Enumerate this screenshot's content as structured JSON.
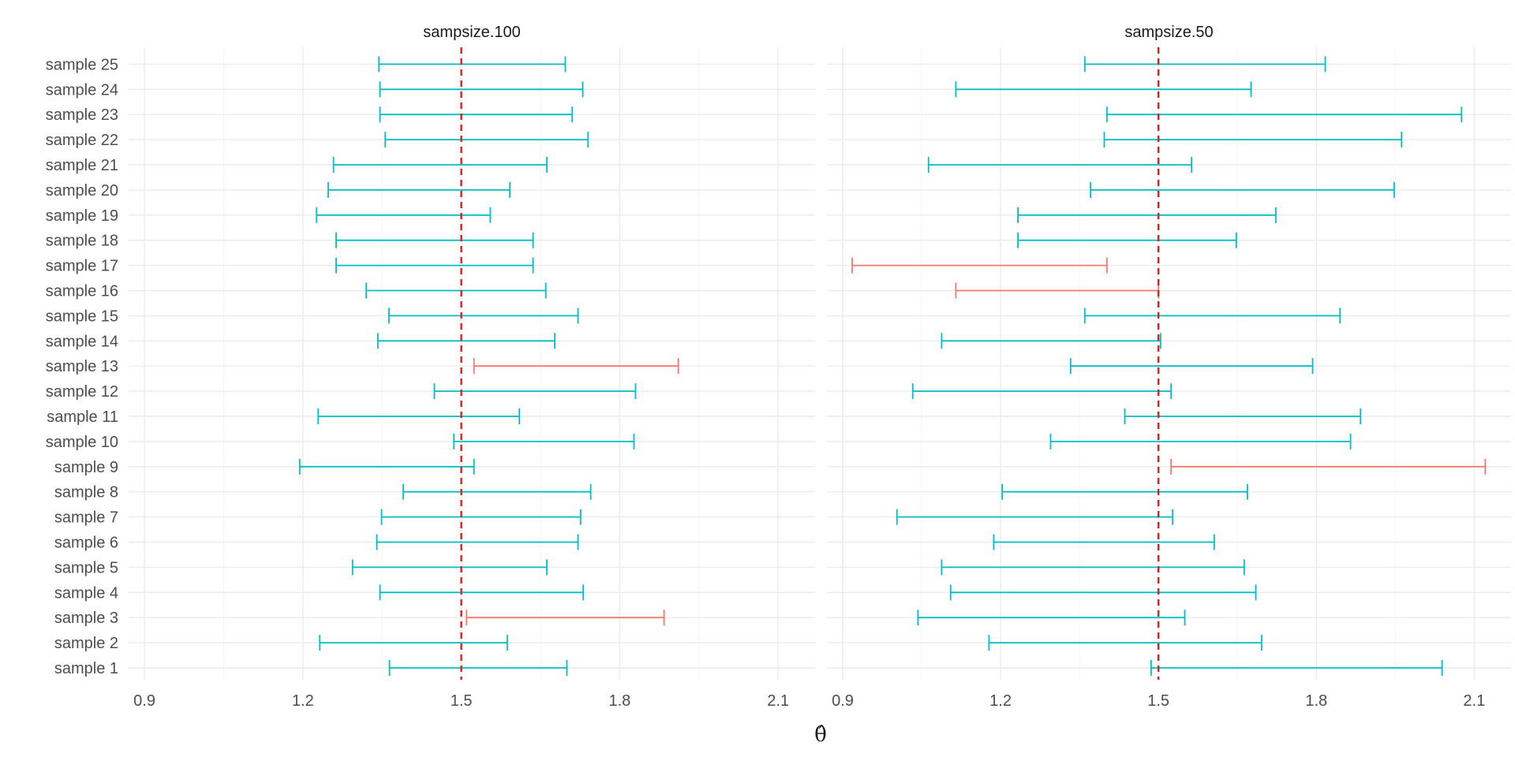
{
  "chart_data": {
    "type": "errorbar",
    "xlabel": "θ̂",
    "xlim": [
      0.87,
      2.17
    ],
    "x_ticks": [
      0.9,
      1.2,
      1.5,
      1.8,
      2.1
    ],
    "x_tick_labels": [
      "0.9",
      "1.2",
      "1.5",
      "1.8",
      "2.1"
    ],
    "reference_line": {
      "x": 1.5,
      "color": "#e41a1c",
      "style": "dashed"
    },
    "colors": {
      "covers": "#00bfc4",
      "misses": "#f8766d"
    },
    "grid": true,
    "categories": [
      "sample 1",
      "sample 2",
      "sample 3",
      "sample 4",
      "sample 5",
      "sample 6",
      "sample 7",
      "sample 8",
      "sample 9",
      "sample 10",
      "sample 11",
      "sample 12",
      "sample 13",
      "sample 14",
      "sample 15",
      "sample 16",
      "sample 17",
      "sample 18",
      "sample 19",
      "sample 20",
      "sample 21",
      "sample 22",
      "sample 23",
      "sample 24",
      "sample 25"
    ],
    "panels": [
      {
        "title": "sampsize.100",
        "intervals": [
          {
            "sample": "sample 1",
            "lower": 1.364,
            "upper": 1.7,
            "covers": true
          },
          {
            "sample": "sample 2",
            "lower": 1.232,
            "upper": 1.587,
            "covers": true
          },
          {
            "sample": "sample 3",
            "lower": 1.51,
            "upper": 1.884,
            "covers": false
          },
          {
            "sample": "sample 4",
            "lower": 1.346,
            "upper": 1.731,
            "covers": true
          },
          {
            "sample": "sample 5",
            "lower": 1.294,
            "upper": 1.662,
            "covers": true
          },
          {
            "sample": "sample 6",
            "lower": 1.34,
            "upper": 1.721,
            "covers": true
          },
          {
            "sample": "sample 7",
            "lower": 1.349,
            "upper": 1.726,
            "covers": true
          },
          {
            "sample": "sample 8",
            "lower": 1.39,
            "upper": 1.745,
            "covers": true
          },
          {
            "sample": "sample 9",
            "lower": 1.194,
            "upper": 1.524,
            "covers": true
          },
          {
            "sample": "sample 10",
            "lower": 1.486,
            "upper": 1.827,
            "covers": true
          },
          {
            "sample": "sample 11",
            "lower": 1.229,
            "upper": 1.61,
            "covers": true
          },
          {
            "sample": "sample 12",
            "lower": 1.449,
            "upper": 1.83,
            "covers": true
          },
          {
            "sample": "sample 13",
            "lower": 1.524,
            "upper": 1.911,
            "covers": false
          },
          {
            "sample": "sample 14",
            "lower": 1.342,
            "upper": 1.677,
            "covers": true
          },
          {
            "sample": "sample 15",
            "lower": 1.363,
            "upper": 1.721,
            "covers": true
          },
          {
            "sample": "sample 16",
            "lower": 1.32,
            "upper": 1.66,
            "covers": true
          },
          {
            "sample": "sample 17",
            "lower": 1.263,
            "upper": 1.636,
            "covers": true
          },
          {
            "sample": "sample 18",
            "lower": 1.263,
            "upper": 1.636,
            "covers": true
          },
          {
            "sample": "sample 19",
            "lower": 1.226,
            "upper": 1.555,
            "covers": true
          },
          {
            "sample": "sample 20",
            "lower": 1.248,
            "upper": 1.592,
            "covers": true
          },
          {
            "sample": "sample 21",
            "lower": 1.258,
            "upper": 1.662,
            "covers": true
          },
          {
            "sample": "sample 22",
            "lower": 1.356,
            "upper": 1.74,
            "covers": true
          },
          {
            "sample": "sample 23",
            "lower": 1.346,
            "upper": 1.71,
            "covers": true
          },
          {
            "sample": "sample 24",
            "lower": 1.346,
            "upper": 1.73,
            "covers": true
          },
          {
            "sample": "sample 25",
            "lower": 1.344,
            "upper": 1.697,
            "covers": true
          }
        ]
      },
      {
        "title": "sampsize.50",
        "intervals": [
          {
            "sample": "sample 1",
            "lower": 1.486,
            "upper": 2.039,
            "covers": true
          },
          {
            "sample": "sample 2",
            "lower": 1.178,
            "upper": 1.696,
            "covers": true
          },
          {
            "sample": "sample 3",
            "lower": 1.043,
            "upper": 1.55,
            "covers": true
          },
          {
            "sample": "sample 4",
            "lower": 1.105,
            "upper": 1.685,
            "covers": true
          },
          {
            "sample": "sample 5",
            "lower": 1.088,
            "upper": 1.663,
            "covers": true
          },
          {
            "sample": "sample 6",
            "lower": 1.187,
            "upper": 1.606,
            "covers": true
          },
          {
            "sample": "sample 7",
            "lower": 1.003,
            "upper": 1.527,
            "covers": true
          },
          {
            "sample": "sample 8",
            "lower": 1.203,
            "upper": 1.669,
            "covers": true
          },
          {
            "sample": "sample 9",
            "lower": 1.524,
            "upper": 2.121,
            "covers": false
          },
          {
            "sample": "sample 10",
            "lower": 1.295,
            "upper": 1.865,
            "covers": true
          },
          {
            "sample": "sample 11",
            "lower": 1.436,
            "upper": 1.884,
            "covers": true
          },
          {
            "sample": "sample 12",
            "lower": 1.033,
            "upper": 1.524,
            "covers": true
          },
          {
            "sample": "sample 13",
            "lower": 1.333,
            "upper": 1.793,
            "covers": true
          },
          {
            "sample": "sample 14",
            "lower": 1.088,
            "upper": 1.504,
            "covers": true
          },
          {
            "sample": "sample 15",
            "lower": 1.36,
            "upper": 1.845,
            "covers": true
          },
          {
            "sample": "sample 16",
            "lower": 1.115,
            "upper": 1.5,
            "covers": false
          },
          {
            "sample": "sample 17",
            "lower": 0.918,
            "upper": 1.402,
            "covers": false
          },
          {
            "sample": "sample 18",
            "lower": 1.233,
            "upper": 1.648,
            "covers": true
          },
          {
            "sample": "sample 19",
            "lower": 1.233,
            "upper": 1.723,
            "covers": true
          },
          {
            "sample": "sample 20",
            "lower": 1.371,
            "upper": 1.948,
            "covers": true
          },
          {
            "sample": "sample 21",
            "lower": 1.063,
            "upper": 1.563,
            "covers": true
          },
          {
            "sample": "sample 22",
            "lower": 1.397,
            "upper": 1.962,
            "covers": true
          },
          {
            "sample": "sample 23",
            "lower": 1.402,
            "upper": 2.076,
            "covers": true
          },
          {
            "sample": "sample 24",
            "lower": 1.115,
            "upper": 1.676,
            "covers": true
          },
          {
            "sample": "sample 25",
            "lower": 1.36,
            "upper": 1.817,
            "covers": true
          }
        ]
      }
    ]
  }
}
